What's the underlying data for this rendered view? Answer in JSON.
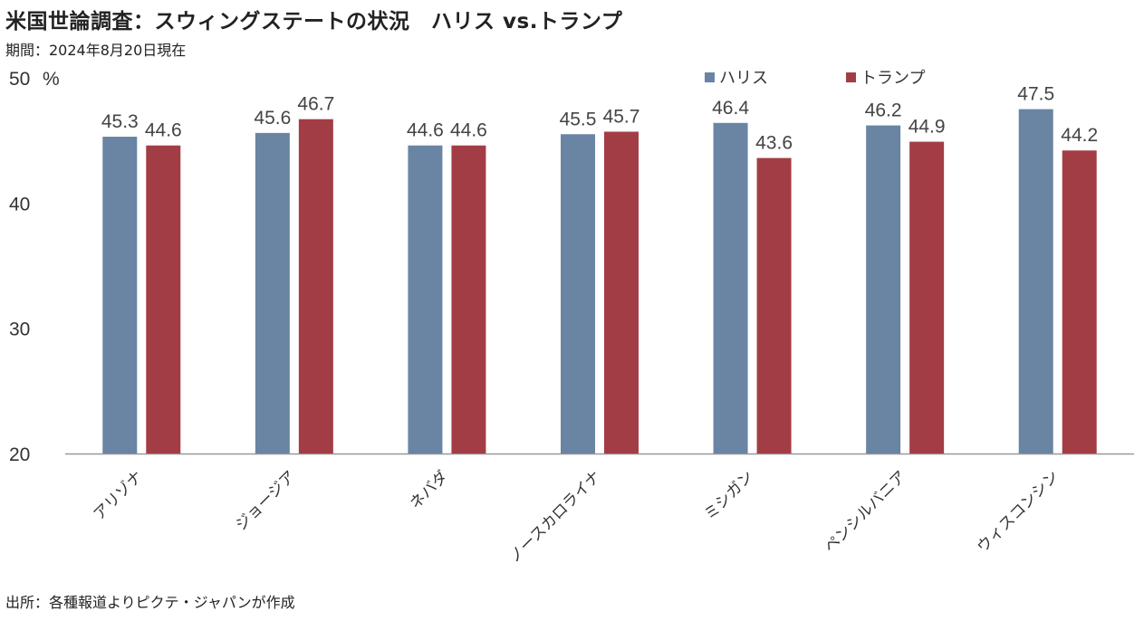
{
  "header": {
    "title": "米国世論調査：スウィングステートの状況　ハリス vs.トランプ",
    "subtitle": "期間：2024年8月20日現在"
  },
  "footer": {
    "source": "出所：各種報道よりピクテ・ジャパンが作成"
  },
  "colors": {
    "harris": "#6a84a3",
    "trump": "#a33d45",
    "axis": "#999999"
  },
  "chart_data": {
    "type": "bar",
    "unit_label": "%",
    "ylim": [
      20,
      50
    ],
    "yticks": [
      20,
      30,
      40,
      50
    ],
    "grid": false,
    "legend_position": "top-right",
    "categories": [
      "アリゾナ",
      "ジョージア",
      "ネバダ",
      "ノースカロライナ",
      "ミシガン",
      "ペンシルバニア",
      "ウィスコンシン"
    ],
    "series": [
      {
        "name": "ハリス",
        "values": [
          45.3,
          45.6,
          44.6,
          45.5,
          46.4,
          46.2,
          47.5
        ]
      },
      {
        "name": "トランプ",
        "values": [
          44.6,
          46.7,
          44.6,
          45.7,
          43.6,
          44.9,
          44.2
        ]
      }
    ]
  }
}
